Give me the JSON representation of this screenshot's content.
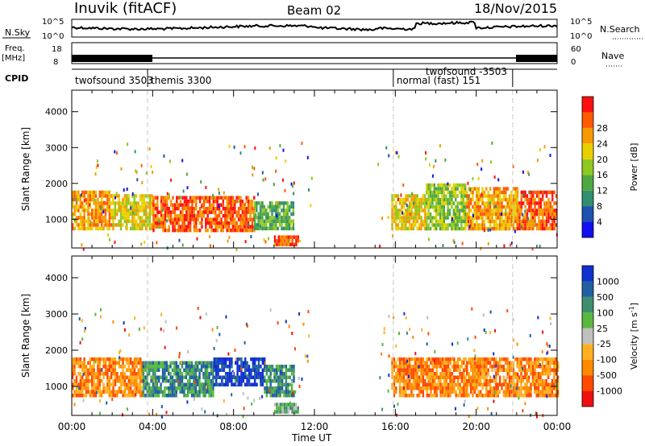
{
  "header": {
    "station": "Inuvik (fitACF)",
    "beam": "Beam 02",
    "date": "18/Nov/2015"
  },
  "aux_panels": {
    "nsky_label": "N.Sky",
    "nsearch_label": "N.Search",
    "nsky_ticks": [
      "10^5",
      "10^0"
    ],
    "nsearch_ticks": [
      "10^5",
      "10^0"
    ],
    "freq_label_1": "Freq.",
    "freq_label_2": "[MHz]",
    "freq_ticks": [
      "18",
      "8"
    ],
    "nave_label": "Nave",
    "nave_ticks": [
      "60",
      "0"
    ],
    "cpid_label": "CPID",
    "cpid_segments": [
      {
        "label": "twofsound 3503",
        "start_hour": 0.0,
        "end_hour": 3.75
      },
      {
        "label": "themis 3300",
        "start_hour": 3.75,
        "end_hour": 15.9
      },
      {
        "label": "normal (fast) 151",
        "start_hour": 15.9,
        "end_hour": 21.8
      },
      {
        "label": "twofsound -3503",
        "start_hour": 21.8,
        "end_hour": 24.0
      }
    ]
  },
  "chart_data": [
    {
      "type": "heatmap",
      "name": "power",
      "ylabel": "Slant Range [km]",
      "xlabel": "Time UT",
      "xlim": [
        0,
        24
      ],
      "ylim": [
        200,
        4600
      ],
      "yticks": [
        "1000",
        "2000",
        "3000",
        "4000"
      ],
      "xticks": [
        "00:00",
        "04:00",
        "08:00",
        "12:00",
        "16:00",
        "20:00",
        "00:00"
      ],
      "colorbar": {
        "label": "Power [dB]",
        "ticks": [
          "4",
          "8",
          "12",
          "16",
          "20",
          "24",
          "28"
        ],
        "colors": [
          "#1010f0",
          "#1f4faf",
          "#2f8f6f",
          "#4fa83f",
          "#8fc81f",
          "#e8d000",
          "#f59a00",
          "#ff5a00",
          "#ff1010"
        ]
      },
      "echo_regions": [
        {
          "t0": 0.0,
          "t1": 2.0,
          "r0": 700,
          "r1": 1800,
          "level": 6
        },
        {
          "t0": 2.0,
          "t1": 4.0,
          "r0": 700,
          "r1": 1700,
          "level": 5
        },
        {
          "t0": 4.0,
          "t1": 9.0,
          "r0": 700,
          "r1": 1650,
          "level": 7
        },
        {
          "t0": 9.0,
          "t1": 11.0,
          "r0": 700,
          "r1": 1500,
          "level": 3
        },
        {
          "t0": 10.0,
          "t1": 11.2,
          "r0": 250,
          "r1": 550,
          "level": 7
        },
        {
          "t0": 15.8,
          "t1": 17.5,
          "r0": 700,
          "r1": 1700,
          "level": 5
        },
        {
          "t0": 17.5,
          "t1": 19.5,
          "r0": 700,
          "r1": 2000,
          "level": 4
        },
        {
          "t0": 19.5,
          "t1": 22.0,
          "r0": 700,
          "r1": 1900,
          "level": 6
        },
        {
          "t0": 22.0,
          "t1": 24.0,
          "r0": 700,
          "r1": 1800,
          "level": 7
        }
      ]
    },
    {
      "type": "heatmap",
      "name": "velocity",
      "ylabel": "Slant Range [km]",
      "xlabel": "Time UT",
      "xlim": [
        0,
        24
      ],
      "ylim": [
        200,
        4600
      ],
      "yticks": [
        "1000",
        "2000",
        "3000",
        "4000"
      ],
      "xticks": [
        "00:00",
        "04:00",
        "08:00",
        "12:00",
        "16:00",
        "20:00",
        "00:00"
      ],
      "colorbar": {
        "label": "Velocity [m s",
        "label_sup": "-1",
        "label_end": "]",
        "ticks": [
          "1000",
          "500",
          "100",
          "25",
          "-25",
          "-100",
          "-500",
          "-1000"
        ],
        "colors": [
          "#1030d0",
          "#2060a0",
          "#3f8f6f",
          "#58b83f",
          "#c0c0c0",
          "#ffb020",
          "#ff8a00",
          "#ff4a00",
          "#f01010"
        ]
      },
      "echo_regions": [
        {
          "t0": 0.0,
          "t1": 3.5,
          "r0": 700,
          "r1": 1800,
          "level": 6
        },
        {
          "t0": 3.5,
          "t1": 7.0,
          "r0": 700,
          "r1": 1700,
          "level": 2
        },
        {
          "t0": 7.0,
          "t1": 9.5,
          "r0": 1000,
          "r1": 1800,
          "level": 0
        },
        {
          "t0": 9.5,
          "t1": 11.0,
          "r0": 700,
          "r1": 1600,
          "level": 2
        },
        {
          "t0": 10.0,
          "t1": 11.2,
          "r0": 250,
          "r1": 550,
          "level": 3
        },
        {
          "t0": 15.8,
          "t1": 19.5,
          "r0": 700,
          "r1": 1800,
          "level": 6
        },
        {
          "t0": 19.5,
          "t1": 24.0,
          "r0": 700,
          "r1": 1800,
          "level": 6
        }
      ]
    }
  ]
}
